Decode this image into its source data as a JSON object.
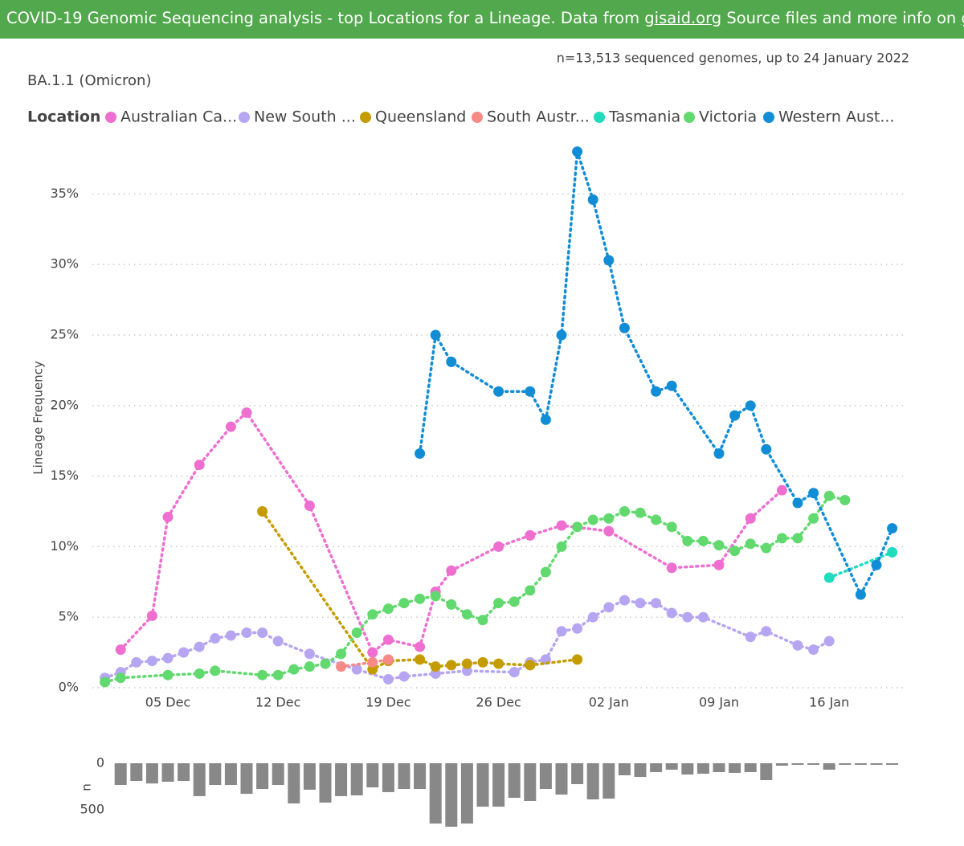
{
  "header": {
    "text": "COVID-19 Genomic Sequencing analysis - top Locations for a Lineage. Data from ",
    "link1": "gisaid.org",
    "middle": " Source files and more info on ",
    "link2": "github",
    "end": "."
  },
  "chart_data": [
    {
      "type": "line",
      "title": "BA.1.1 (Omicron)",
      "subtitle": "n=13,513 sequenced genomes, up to 24 January 2022",
      "legend_title": "Location",
      "ylabel": "Lineage Frequency",
      "xlim": [
        "01 Dec",
        "20 Jan"
      ],
      "xticks": [
        "05 Dec",
        "12 Dec",
        "19 Dec",
        "26 Dec",
        "02 Jan",
        "09 Jan",
        "16 Jan"
      ],
      "ylim": [
        0,
        38.5
      ],
      "yticks": [
        {
          "value": 0,
          "label": "0%"
        },
        {
          "value": 5,
          "label": "5%"
        },
        {
          "value": 10,
          "label": "10%"
        },
        {
          "value": 15,
          "label": "15%"
        },
        {
          "value": 20,
          "label": "20%"
        },
        {
          "value": 25,
          "label": "25%"
        },
        {
          "value": 30,
          "label": "30%"
        },
        {
          "value": 35,
          "label": "35%"
        }
      ],
      "grid": true,
      "series": [
        {
          "name": "Australian Ca...",
          "color": "#ee6fd0",
          "x": [
            "02 Dec",
            "04 Dec",
            "05 Dec",
            "07 Dec",
            "09 Dec",
            "10 Dec",
            "14 Dec",
            "18 Dec",
            "19 Dec",
            "21 Dec",
            "22 Dec",
            "23 Dec",
            "26 Dec",
            "28 Dec",
            "30 Dec",
            "02 Jan",
            "06 Jan",
            "09 Jan",
            "11 Jan",
            "13 Jan"
          ],
          "values": [
            2.7,
            5.1,
            12.1,
            15.8,
            18.5,
            19.5,
            12.9,
            2.5,
            3.4,
            2.9,
            6.8,
            8.3,
            10.0,
            10.8,
            11.5,
            11.1,
            8.5,
            8.7,
            12.0,
            14.0
          ]
        },
        {
          "name": "New South ...",
          "color": "#b6a6f2",
          "x": [
            "01 Dec",
            "02 Dec",
            "03 Dec",
            "04 Dec",
            "05 Dec",
            "06 Dec",
            "07 Dec",
            "08 Dec",
            "09 Dec",
            "10 Dec",
            "11 Dec",
            "12 Dec",
            "14 Dec",
            "17 Dec",
            "19 Dec",
            "20 Dec",
            "22 Dec",
            "24 Dec",
            "27 Dec",
            "28 Dec",
            "29 Dec",
            "30 Dec",
            "31 Dec",
            "01 Jan",
            "02 Jan",
            "03 Jan",
            "04 Jan",
            "05 Jan",
            "06 Jan",
            "07 Jan",
            "08 Jan",
            "11 Jan",
            "12 Jan",
            "14 Jan",
            "15 Jan",
            "16 Jan"
          ],
          "values": [
            0.7,
            1.1,
            1.8,
            1.9,
            2.1,
            2.5,
            2.9,
            3.5,
            3.7,
            3.9,
            3.9,
            3.3,
            2.4,
            1.3,
            0.6,
            0.8,
            1.0,
            1.2,
            1.1,
            1.8,
            2.0,
            4.0,
            4.2,
            5.0,
            5.7,
            6.2,
            6.0,
            6.0,
            5.3,
            5.0,
            5.0,
            3.6,
            4.0,
            3.0,
            2.7,
            3.3
          ]
        },
        {
          "name": "Queensland",
          "color": "#c49c00",
          "x": [
            "11 Dec",
            "18 Dec",
            "19 Dec",
            "21 Dec",
            "22 Dec",
            "23 Dec",
            "24 Dec",
            "25 Dec",
            "26 Dec",
            "28 Dec",
            "31 Dec"
          ],
          "values": [
            12.5,
            1.3,
            1.9,
            2.0,
            1.5,
            1.6,
            1.7,
            1.8,
            1.7,
            1.6,
            2.0
          ]
        },
        {
          "name": "South Austr...",
          "color": "#f58a86",
          "x": [
            "16 Dec",
            "18 Dec",
            "19 Dec"
          ],
          "values": [
            1.5,
            1.8,
            2.0
          ]
        },
        {
          "name": "Tasmania",
          "color": "#1fdcbc",
          "x": [
            "16 Jan",
            "20 Jan"
          ],
          "values": [
            7.8,
            9.6
          ]
        },
        {
          "name": "Victoria",
          "color": "#62d96f",
          "x": [
            "01 Dec",
            "02 Dec",
            "05 Dec",
            "07 Dec",
            "08 Dec",
            "11 Dec",
            "12 Dec",
            "13 Dec",
            "14 Dec",
            "15 Dec",
            "16 Dec",
            "17 Dec",
            "18 Dec",
            "19 Dec",
            "20 Dec",
            "21 Dec",
            "22 Dec",
            "23 Dec",
            "24 Dec",
            "25 Dec",
            "26 Dec",
            "27 Dec",
            "28 Dec",
            "29 Dec",
            "30 Dec",
            "31 Dec",
            "01 Jan",
            "02 Jan",
            "03 Jan",
            "04 Jan",
            "05 Jan",
            "06 Jan",
            "07 Jan",
            "08 Jan",
            "09 Jan",
            "10 Jan",
            "11 Jan",
            "12 Jan",
            "13 Jan",
            "14 Jan",
            "15 Jan",
            "16 Jan",
            "17 Jan"
          ],
          "values": [
            0.4,
            0.7,
            0.9,
            1.0,
            1.2,
            0.9,
            0.9,
            1.3,
            1.5,
            1.7,
            2.4,
            3.9,
            5.2,
            5.6,
            6.0,
            6.3,
            6.5,
            5.9,
            5.2,
            4.8,
            6.0,
            6.1,
            6.9,
            8.2,
            10.0,
            11.4,
            11.9,
            12.0,
            12.5,
            12.4,
            11.9,
            11.4,
            10.4,
            10.4,
            10.1,
            9.7,
            10.2,
            9.9,
            10.6,
            10.6,
            12.0,
            13.6,
            13.3
          ]
        },
        {
          "name": "Western Aust...",
          "color": "#118dd6",
          "x": [
            "21 Dec",
            "22 Dec",
            "23 Dec",
            "26 Dec",
            "28 Dec",
            "29 Dec",
            "30 Dec",
            "31 Dec",
            "01 Jan",
            "02 Jan",
            "03 Jan",
            "05 Jan",
            "06 Jan",
            "09 Jan",
            "10 Jan",
            "11 Jan",
            "12 Jan",
            "14 Jan",
            "15 Jan",
            "18 Jan",
            "19 Jan",
            "20 Jan"
          ],
          "values": [
            16.6,
            25.0,
            23.1,
            21.0,
            21.0,
            19.0,
            25.0,
            38.0,
            34.6,
            30.3,
            25.5,
            21.0,
            21.4,
            16.6,
            19.3,
            20.0,
            16.9,
            13.1,
            13.8,
            6.6,
            8.7,
            11.3
          ]
        }
      ]
    },
    {
      "type": "bar",
      "ylabel": "n",
      "color": "#888888",
      "xlim": [
        "01 Dec",
        "20 Jan"
      ],
      "ylim": [
        0,
        700
      ],
      "yticks": [
        0,
        500
      ],
      "x": [
        "02 Dec",
        "03 Dec",
        "04 Dec",
        "05 Dec",
        "06 Dec",
        "07 Dec",
        "08 Dec",
        "09 Dec",
        "10 Dec",
        "11 Dec",
        "12 Dec",
        "13 Dec",
        "14 Dec",
        "15 Dec",
        "16 Dec",
        "17 Dec",
        "18 Dec",
        "19 Dec",
        "20 Dec",
        "21 Dec",
        "22 Dec",
        "23 Dec",
        "24 Dec",
        "25 Dec",
        "26 Dec",
        "27 Dec",
        "28 Dec",
        "29 Dec",
        "30 Dec",
        "31 Dec",
        "01 Jan",
        "02 Jan",
        "03 Jan",
        "04 Jan",
        "05 Jan",
        "06 Jan",
        "07 Jan",
        "08 Jan",
        "09 Jan",
        "10 Jan",
        "11 Jan",
        "12 Jan",
        "13 Jan",
        "14 Jan",
        "15 Jan",
        "16 Jan",
        "17 Jan",
        "18 Jan",
        "19 Jan",
        "20 Jan"
      ],
      "values": [
        233,
        190,
        217,
        198,
        190,
        353,
        233,
        233,
        328,
        276,
        233,
        431,
        284,
        422,
        353,
        345,
        259,
        310,
        276,
        276,
        647,
        681,
        647,
        466,
        466,
        371,
        405,
        276,
        336,
        224,
        388,
        379,
        129,
        147,
        95,
        69,
        121,
        112,
        95,
        103,
        95,
        181,
        26,
        17,
        17,
        69,
        17,
        17,
        17,
        17
      ]
    }
  ]
}
